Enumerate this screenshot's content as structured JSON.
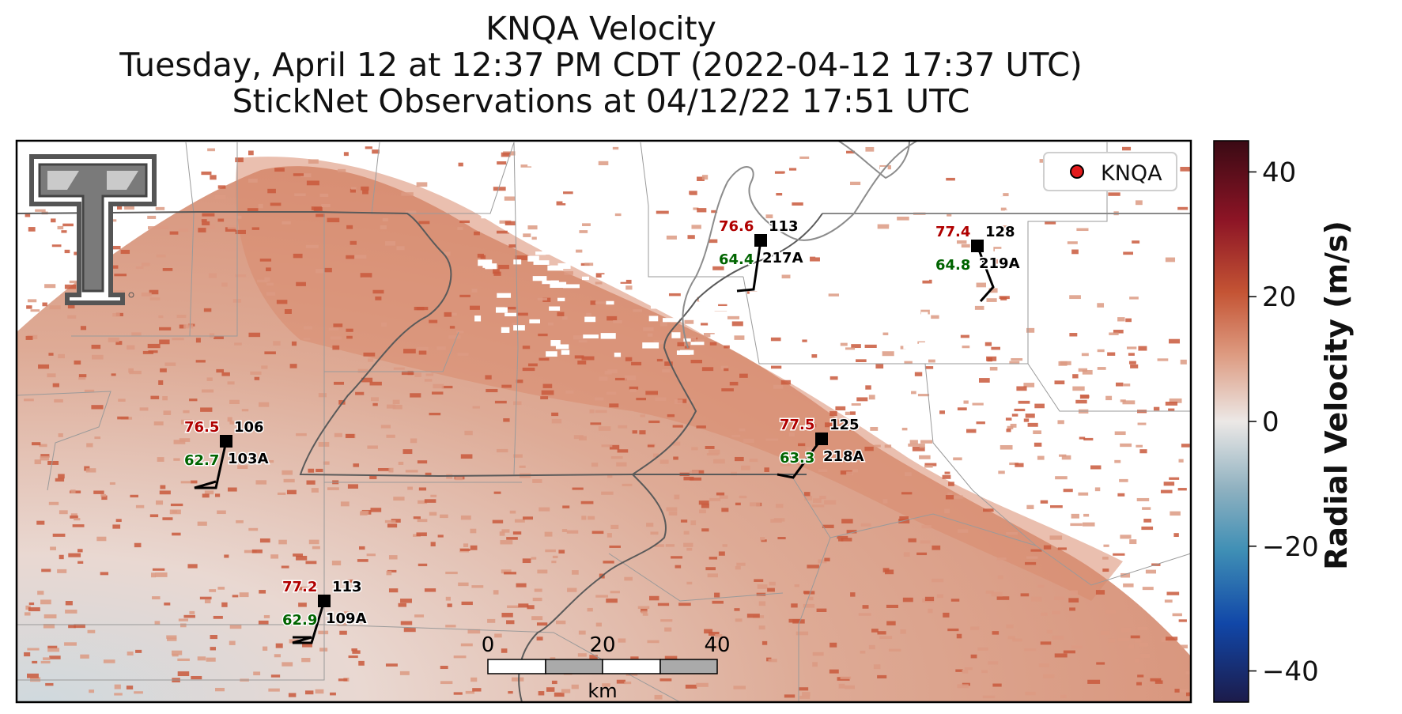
{
  "title": {
    "line1": "KNQA Velocity",
    "line2": "Tuesday, April 12 at 12:37 PM CDT (2022-04-12 17:37 UTC)",
    "line3": "StickNet Observations at 04/12/22 17:51 UTC"
  },
  "legend": {
    "label": "KNQA",
    "marker_color": "#e31a1c"
  },
  "colorbar": {
    "label": "Radial Velocity (m/s)",
    "ticks": [
      "40",
      "20",
      "0",
      "−20",
      "−40"
    ],
    "tick_values": [
      40,
      20,
      0,
      -20,
      -40
    ],
    "range": [
      -45,
      45
    ]
  },
  "scalebar": {
    "ticks": [
      "0",
      "20",
      "40"
    ],
    "unit": "km"
  },
  "stations": [
    {
      "temp": "76.6",
      "dew": "64.4",
      "pressure": "113",
      "id": "217A"
    },
    {
      "temp": "77.4",
      "dew": "64.8",
      "pressure": "128",
      "id": "219A"
    },
    {
      "temp": "76.5",
      "dew": "62.7",
      "pressure": "106",
      "id": "103A"
    },
    {
      "temp": "77.5",
      "dew": "63.3",
      "pressure": "125",
      "id": "218A"
    },
    {
      "temp": "77.2",
      "dew": "62.9",
      "pressure": "113",
      "id": "109A"
    }
  ],
  "colors": {
    "temp": "#b00000",
    "dew": "#006400",
    "echo": "#c9593c",
    "echo_light": "#dc9a82"
  }
}
